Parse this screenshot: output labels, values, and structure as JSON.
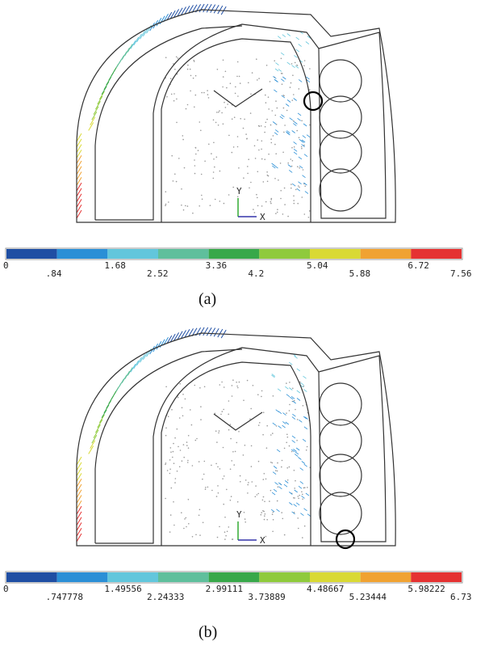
{
  "panels": [
    {
      "caption": "(a)",
      "triad": {
        "y": "Y",
        "x": "X"
      },
      "legend": {
        "colors": [
          "#1f4ea3",
          "#2b8fd6",
          "#62c6dc",
          "#5fbf9c",
          "#38a84a",
          "#8fca3c",
          "#d9d935",
          "#f0a232",
          "#e53232"
        ],
        "upper_labels": [
          "0",
          "1.68",
          "3.36",
          "5.04",
          "6.72"
        ],
        "lower_labels": [
          ".84",
          "2.52",
          "4.2",
          "5.88",
          "7.56"
        ]
      }
    },
    {
      "caption": "(b)",
      "triad": {
        "y": "Y",
        "x": "X"
      },
      "legend": {
        "colors": [
          "#1f4ea3",
          "#2b8fd6",
          "#62c6dc",
          "#5fbf9c",
          "#38a84a",
          "#8fca3c",
          "#d9d935",
          "#f0a232",
          "#e53232"
        ],
        "upper_labels": [
          "0",
          "1.49556",
          "2.99111",
          "4.48667",
          "5.98222"
        ],
        "lower_labels": [
          ".747778",
          "2.24333",
          "3.73889",
          "5.23444",
          "6.73"
        ]
      }
    }
  ]
}
